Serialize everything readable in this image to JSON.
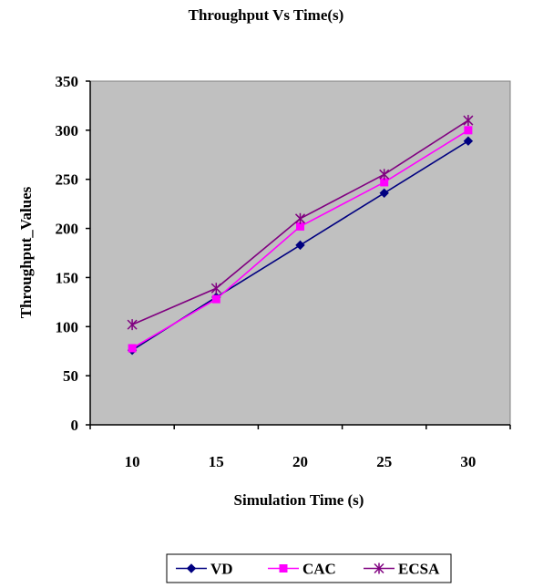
{
  "chart_data": {
    "type": "line",
    "title": "Throughput Vs Time(s)",
    "xlabel": "Simulation Time (s)",
    "ylabel": "Throughput_Values",
    "categories": [
      "10",
      "15",
      "20",
      "25",
      "30"
    ],
    "ylim": [
      0,
      350
    ],
    "yticks": [
      0,
      50,
      100,
      150,
      200,
      250,
      300,
      350
    ],
    "grid": false,
    "legend_position": "bottom",
    "plot_background": "#c0c0c0",
    "series": [
      {
        "name": "VD",
        "values": [
          76,
          130,
          183,
          236,
          289
        ],
        "color": "#000080",
        "marker": "diamond"
      },
      {
        "name": "CAC",
        "values": [
          78,
          128,
          202,
          247,
          300
        ],
        "color": "#ff00ff",
        "marker": "square"
      },
      {
        "name": "ECSA",
        "values": [
          102,
          139,
          210,
          255,
          310
        ],
        "color": "#800080",
        "marker": "star"
      }
    ]
  }
}
